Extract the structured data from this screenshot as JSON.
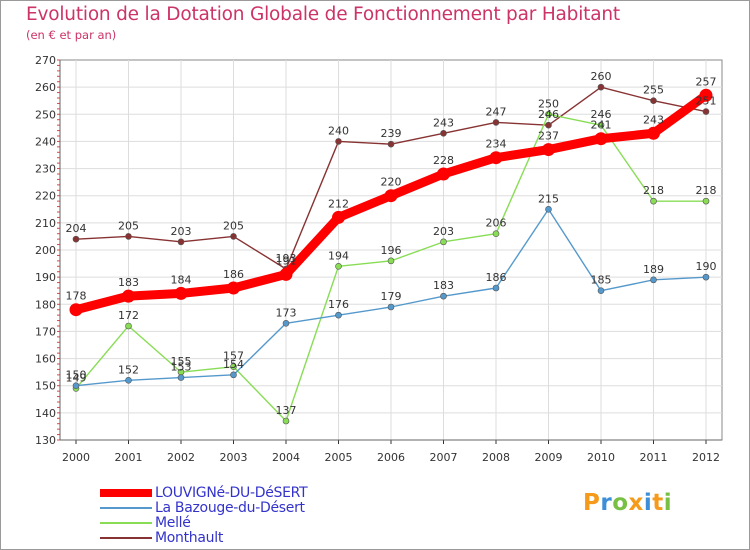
{
  "title": "Evolution de la Dotation Globale de Fonctionnement par Habitant",
  "subtitle": "(en € et par an)",
  "logo": {
    "letters": [
      "P",
      "r",
      "o",
      "x",
      "i",
      "t",
      "i"
    ],
    "colors": [
      "#f59a1a",
      "#3c8ed8",
      "#77c043",
      "#f59a1a",
      "#3c8ed8",
      "#f59a1a",
      "#77c043"
    ]
  },
  "chart_data": {
    "type": "line",
    "title": "Evolution de la Dotation Globale de Fonctionnement par Habitant",
    "subtitle": "(en € et par an)",
    "xlabel": "",
    "ylabel": "",
    "x": [
      "2000",
      "2001",
      "2002",
      "2003",
      "2004",
      "2005",
      "2006",
      "2007",
      "2008",
      "2009",
      "2010",
      "2011",
      "2012"
    ],
    "ylim": [
      130,
      270
    ],
    "yticks": [
      130,
      140,
      150,
      160,
      170,
      180,
      190,
      200,
      210,
      220,
      230,
      240,
      250,
      260,
      270
    ],
    "grid": true,
    "legend_position": "bottom-left",
    "series": [
      {
        "name": "LOUVIGNé-DU-DéSERT",
        "color": "#ff0000",
        "values": [
          178,
          183,
          184,
          186,
          191,
          212,
          220,
          228,
          234,
          237,
          241,
          243,
          257
        ]
      },
      {
        "name": "La Bazouge-du-Désert",
        "color": "#5599cc",
        "values": [
          150,
          152,
          153,
          154,
          173,
          176,
          179,
          183,
          186,
          215,
          185,
          189,
          190
        ]
      },
      {
        "name": "Mellé",
        "color": "#88dd55",
        "values": [
          149,
          172,
          155,
          157,
          137,
          194,
          196,
          203,
          206,
          250,
          246,
          218,
          218
        ]
      },
      {
        "name": "Monthault",
        "color": "#883333",
        "values": [
          204,
          205,
          203,
          205,
          193,
          240,
          239,
          243,
          247,
          246,
          260,
          255,
          251
        ]
      }
    ]
  }
}
